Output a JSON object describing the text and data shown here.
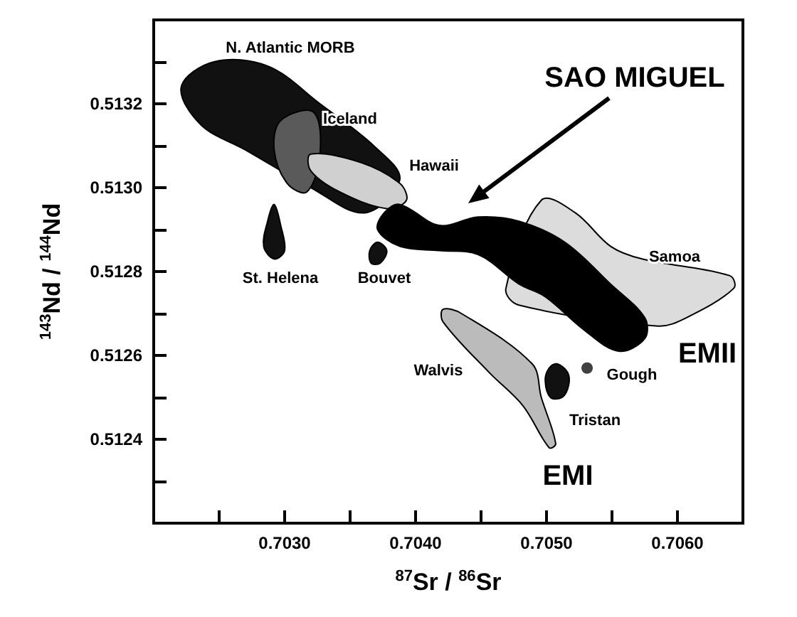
{
  "chart_data": {
    "type": "area",
    "xlabel": "$^{87}$Sr / $^{86}$Sr",
    "ylabel": "$^{143}$Nd / $^{144}$Nd",
    "xlim": [
      0.702,
      0.7065
    ],
    "ylim": [
      0.5122,
      0.5134
    ],
    "xticks": [
      {
        "value": 0.7025,
        "label": null
      },
      {
        "value": 0.703,
        "label": "0.7030"
      },
      {
        "value": 0.7035,
        "label": null
      },
      {
        "value": 0.704,
        "label": "0.7040"
      },
      {
        "value": 0.7045,
        "label": null
      },
      {
        "value": 0.705,
        "label": "0.7050"
      },
      {
        "value": 0.7055,
        "label": null
      },
      {
        "value": 0.706,
        "label": "0.7060"
      }
    ],
    "yticks": [
      {
        "value": 0.5123,
        "label": null
      },
      {
        "value": 0.5124,
        "label": "0.5124"
      },
      {
        "value": 0.5125,
        "label": null
      },
      {
        "value": 0.5126,
        "label": "0.5126"
      },
      {
        "value": 0.5127,
        "label": null
      },
      {
        "value": 0.5128,
        "label": "0.5128"
      },
      {
        "value": 0.5129,
        "label": null
      },
      {
        "value": 0.513,
        "label": "0.5130"
      },
      {
        "value": 0.5131,
        "label": null
      },
      {
        "value": 0.5132,
        "label": "0.5132"
      },
      {
        "value": 0.5133,
        "label": null
      }
    ],
    "series": [
      {
        "name": "Samoa",
        "color": "#dcdcdc",
        "x": [
          0.70496,
          0.70522,
          0.70549,
          0.70573,
          0.7064,
          0.70643,
          0.70607,
          0.70585,
          0.70479,
          0.70469
        ],
        "values": [
          0.51297,
          0.51294,
          0.51286,
          0.51283,
          0.51279,
          0.51276,
          0.51269,
          0.51267,
          0.51272,
          0.51276
        ]
      },
      {
        "name": "N. Atlantic MORB",
        "color": "#111111",
        "x": [
          0.70221,
          0.70246,
          0.70287,
          0.70327,
          0.70368,
          0.70388,
          0.70361,
          0.7032,
          0.7027,
          0.70236
        ],
        "values": [
          0.51324,
          0.5133,
          0.51329,
          0.5132,
          0.5131,
          0.51302,
          0.51294,
          0.513,
          0.51309,
          0.51315
        ]
      },
      {
        "name": "Iceland",
        "color": "#5a5a5a",
        "x": [
          0.70297,
          0.70322,
          0.70327,
          0.70317,
          0.70302,
          0.70292
        ],
        "values": [
          0.51316,
          0.51318,
          0.51308,
          0.51299,
          0.51301,
          0.51309
        ]
      },
      {
        "name": "Hawaii",
        "color": "#d0d0d0",
        "x": [
          0.7032,
          0.70358,
          0.70388,
          0.70393,
          0.70378,
          0.70342,
          0.7032
        ],
        "values": [
          0.51308,
          0.51306,
          0.51301,
          0.51297,
          0.51295,
          0.51299,
          0.51304
        ]
      },
      {
        "name": "St. Helena",
        "color": "#111111",
        "x": [
          0.70292,
          0.70297,
          0.703,
          0.70292,
          0.70284,
          0.70287
        ],
        "values": [
          0.51296,
          0.51291,
          0.51285,
          0.51283,
          0.51286,
          0.51292
        ]
      },
      {
        "name": "Bouvet",
        "color": "#111111",
        "x": [
          0.70365,
          0.70371,
          0.70378,
          0.70373,
          0.70366
        ],
        "values": [
          0.51285,
          0.51287,
          0.51285,
          0.51282,
          0.51282
        ]
      },
      {
        "name": "SAO MIGUEL",
        "color": "#000000",
        "x": [
          0.70388,
          0.70418,
          0.70448,
          0.70479,
          0.70514,
          0.70549,
          0.70575,
          0.70575,
          0.70555,
          0.70529,
          0.70499,
          0.70479,
          0.70448,
          0.70418,
          0.70388,
          0.70371,
          0.70376
        ],
        "values": [
          0.51296,
          0.51291,
          0.51293,
          0.51292,
          0.51287,
          0.51277,
          0.51269,
          0.51264,
          0.51261,
          0.51266,
          0.51274,
          0.51277,
          0.51284,
          0.51285,
          0.51286,
          0.5129,
          0.51294
        ]
      },
      {
        "name": "Walvis",
        "color": "#bbbbbb",
        "x": [
          0.70421,
          0.70435,
          0.70489,
          0.70496,
          0.70507,
          0.70502,
          0.70482,
          0.70456,
          0.70421
        ],
        "values": [
          0.51271,
          0.5127,
          0.51258,
          0.5125,
          0.51239,
          0.51238,
          0.51248,
          0.51256,
          0.51268
        ]
      },
      {
        "name": "Tristan",
        "color": "#111111",
        "x": [
          0.70508,
          0.70516,
          0.70517,
          0.70512,
          0.70503,
          0.70499,
          0.70502
        ],
        "values": [
          0.51258,
          0.51256,
          0.51253,
          0.5125,
          0.5125,
          0.51254,
          0.51257
        ]
      },
      {
        "name": "Gough",
        "type": "scatter",
        "color": "#111111",
        "marker": "circle",
        "x": [
          0.70531
        ],
        "values": [
          0.51257
        ]
      }
    ],
    "annotations": [
      "EMI",
      "EMII"
    ]
  }
}
